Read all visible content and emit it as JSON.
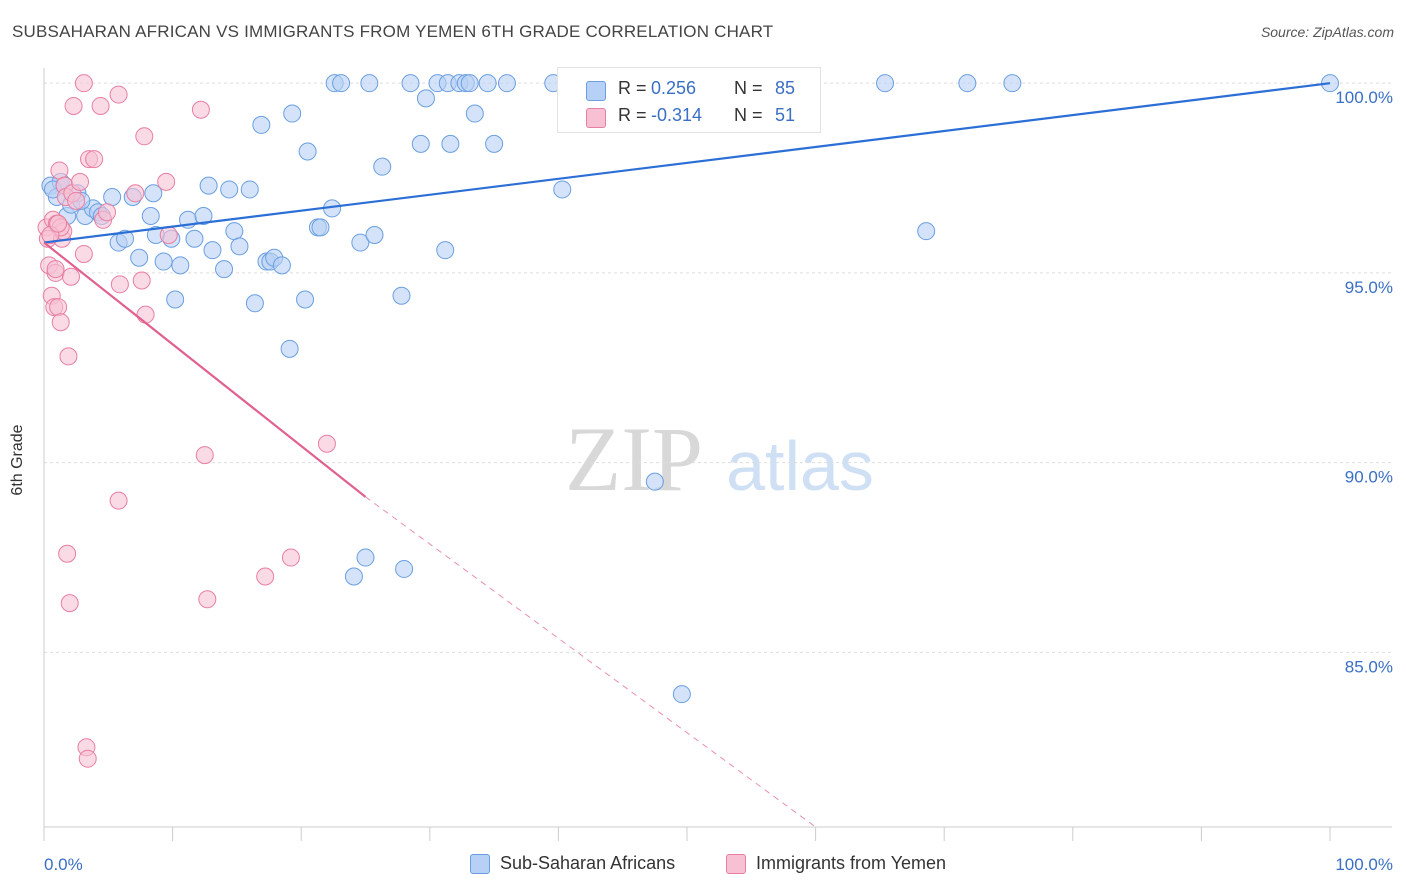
{
  "title": "SUBSAHARAN AFRICAN VS IMMIGRANTS FROM YEMEN 6TH GRADE CORRELATION CHART",
  "source": "Source: ZipAtlas.com",
  "watermark": {
    "zip": "ZIP",
    "atlas": "atlas"
  },
  "colors": {
    "blue": "#6a9fe0",
    "blue_fill": "#b7d0f5",
    "blue_line": "#2b6fd6",
    "pink": "#e87fa2",
    "pink_fill": "#f7c1d3",
    "pink_line": "#e0608e",
    "axis_label": "#3a6fc4",
    "grid": "#dddddd"
  },
  "stats": {
    "r_label": "R =",
    "n_label": "N =",
    "blue": {
      "r": "0.256",
      "n": "85"
    },
    "pink": {
      "r": "-0.314",
      "n": "51"
    }
  },
  "legend": {
    "blue": "Sub-Saharan Africans",
    "pink": "Immigrants from Yemen"
  },
  "chart_data": {
    "type": "scatter",
    "title": "SUBSAHARAN AFRICAN VS IMMIGRANTS FROM YEMEN 6TH GRADE CORRELATION CHART",
    "xlabel": "",
    "ylabel": "6th Grade",
    "xlim": [
      0,
      100
    ],
    "ylim": [
      80.4,
      100.4
    ],
    "x_tick_labels": [
      "0.0%",
      "100.0%"
    ],
    "y_ticks": [
      85,
      90,
      95,
      100
    ],
    "y_tick_labels": [
      "85.0%",
      "90.0%",
      "95.0%",
      "100.0%"
    ],
    "grid": true,
    "legend_position": "bottom",
    "series": [
      {
        "name": "Sub-Saharan Africans",
        "color": "#6a9fe0",
        "trend": {
          "x": [
            0,
            100
          ],
          "y": [
            95.8,
            100.0
          ]
        },
        "points": [
          [
            0.5,
            97.3
          ],
          [
            1.0,
            97.0
          ],
          [
            1.3,
            97.4
          ],
          [
            1.8,
            96.5
          ],
          [
            2.1,
            96.8
          ],
          [
            2.6,
            97.1
          ],
          [
            3.2,
            96.5
          ],
          [
            3.8,
            96.7
          ],
          [
            4.2,
            96.6
          ],
          [
            5.3,
            97.0
          ],
          [
            5.8,
            95.8
          ],
          [
            6.3,
            95.9
          ],
          [
            6.9,
            97.0
          ],
          [
            7.4,
            95.4
          ],
          [
            8.3,
            96.5
          ],
          [
            8.5,
            97.1
          ],
          [
            8.7,
            96.0
          ],
          [
            9.3,
            95.3
          ],
          [
            10.2,
            94.3
          ],
          [
            10.6,
            95.2
          ],
          [
            11.2,
            96.4
          ],
          [
            11.7,
            95.9
          ],
          [
            12.4,
            96.5
          ],
          [
            12.8,
            97.3
          ],
          [
            13.1,
            95.6
          ],
          [
            14.0,
            95.1
          ],
          [
            14.4,
            97.2
          ],
          [
            14.8,
            96.1
          ],
          [
            15.2,
            95.7
          ],
          [
            16.0,
            97.2
          ],
          [
            16.4,
            94.2
          ],
          [
            16.9,
            98.9
          ],
          [
            17.3,
            95.3
          ],
          [
            17.6,
            95.3
          ],
          [
            17.9,
            95.4
          ],
          [
            18.5,
            95.2
          ],
          [
            19.1,
            93.0
          ],
          [
            19.3,
            99.2
          ],
          [
            20.3,
            94.3
          ],
          [
            20.5,
            98.2
          ],
          [
            21.3,
            96.2
          ],
          [
            21.5,
            96.2
          ],
          [
            22.4,
            96.7
          ],
          [
            22.6,
            100.0
          ],
          [
            23.1,
            100.0
          ],
          [
            24.1,
            87.0
          ],
          [
            24.6,
            95.8
          ],
          [
            25.0,
            87.5
          ],
          [
            25.3,
            100.0
          ],
          [
            25.7,
            96.0
          ],
          [
            26.3,
            97.8
          ],
          [
            27.8,
            94.4
          ],
          [
            28.0,
            87.2
          ],
          [
            28.5,
            100.0
          ],
          [
            29.3,
            98.4
          ],
          [
            29.7,
            99.6
          ],
          [
            30.6,
            100.0
          ],
          [
            31.2,
            95.6
          ],
          [
            31.4,
            100.0
          ],
          [
            31.6,
            98.4
          ],
          [
            32.3,
            100.0
          ],
          [
            32.8,
            100.0
          ],
          [
            33.1,
            100.0
          ],
          [
            33.5,
            99.2
          ],
          [
            34.5,
            100.0
          ],
          [
            35.0,
            98.4
          ],
          [
            36.0,
            100.0
          ],
          [
            39.6,
            100.0
          ],
          [
            40.3,
            97.2
          ],
          [
            41.3,
            99.1
          ],
          [
            47.1,
            100.0
          ],
          [
            47.5,
            89.5
          ],
          [
            49.6,
            83.9
          ],
          [
            54.8,
            100.0
          ],
          [
            59.2,
            100.0
          ],
          [
            65.4,
            100.0
          ],
          [
            68.6,
            96.1
          ],
          [
            71.8,
            100.0
          ],
          [
            75.3,
            100.0
          ],
          [
            100.0,
            100.0
          ],
          [
            0.7,
            97.2
          ],
          [
            1.6,
            97.3
          ],
          [
            2.9,
            96.9
          ],
          [
            4.5,
            96.5
          ],
          [
            9.9,
            95.9
          ]
        ]
      },
      {
        "name": "Immigrants from Yemen",
        "color": "#e87fa2",
        "trend": {
          "x": [
            0,
            25.0
          ],
          "y": [
            95.8,
            89.1
          ]
        },
        "trend_dashed": {
          "x": [
            25.0,
            60.0
          ],
          "y": [
            89.1,
            80.4
          ]
        },
        "points": [
          [
            0.2,
            96.2
          ],
          [
            0.3,
            95.9
          ],
          [
            0.4,
            95.2
          ],
          [
            0.6,
            94.4
          ],
          [
            0.7,
            96.4
          ],
          [
            0.8,
            94.1
          ],
          [
            0.9,
            95.0
          ],
          [
            1.0,
            96.3
          ],
          [
            1.1,
            94.1
          ],
          [
            1.2,
            97.7
          ],
          [
            1.3,
            93.7
          ],
          [
            1.4,
            95.9
          ],
          [
            1.5,
            96.1
          ],
          [
            1.6,
            97.3
          ],
          [
            1.7,
            97.0
          ],
          [
            1.8,
            87.6
          ],
          [
            1.9,
            92.8
          ],
          [
            2.0,
            86.3
          ],
          [
            2.1,
            94.9
          ],
          [
            2.2,
            97.1
          ],
          [
            2.3,
            99.4
          ],
          [
            2.8,
            97.4
          ],
          [
            3.1,
            100.0
          ],
          [
            3.1,
            95.5
          ],
          [
            3.3,
            82.5
          ],
          [
            3.4,
            82.2
          ],
          [
            3.5,
            98.0
          ],
          [
            3.9,
            98.0
          ],
          [
            4.4,
            99.4
          ],
          [
            4.6,
            96.4
          ],
          [
            4.9,
            96.6
          ],
          [
            5.8,
            99.7
          ],
          [
            5.9,
            94.7
          ],
          [
            7.1,
            97.1
          ],
          [
            7.6,
            94.8
          ],
          [
            7.8,
            98.6
          ],
          [
            7.9,
            93.9
          ],
          [
            9.5,
            97.4
          ],
          [
            9.7,
            96.0
          ],
          [
            12.2,
            99.3
          ],
          [
            12.5,
            90.2
          ],
          [
            12.7,
            86.4
          ],
          [
            17.2,
            87.0
          ],
          [
            19.2,
            87.5
          ],
          [
            22.0,
            90.5
          ],
          [
            5.8,
            89.0
          ],
          [
            1.3,
            96.2
          ],
          [
            0.5,
            96.0
          ],
          [
            2.5,
            96.9
          ],
          [
            0.9,
            95.1
          ],
          [
            1.1,
            96.3
          ]
        ]
      }
    ]
  }
}
